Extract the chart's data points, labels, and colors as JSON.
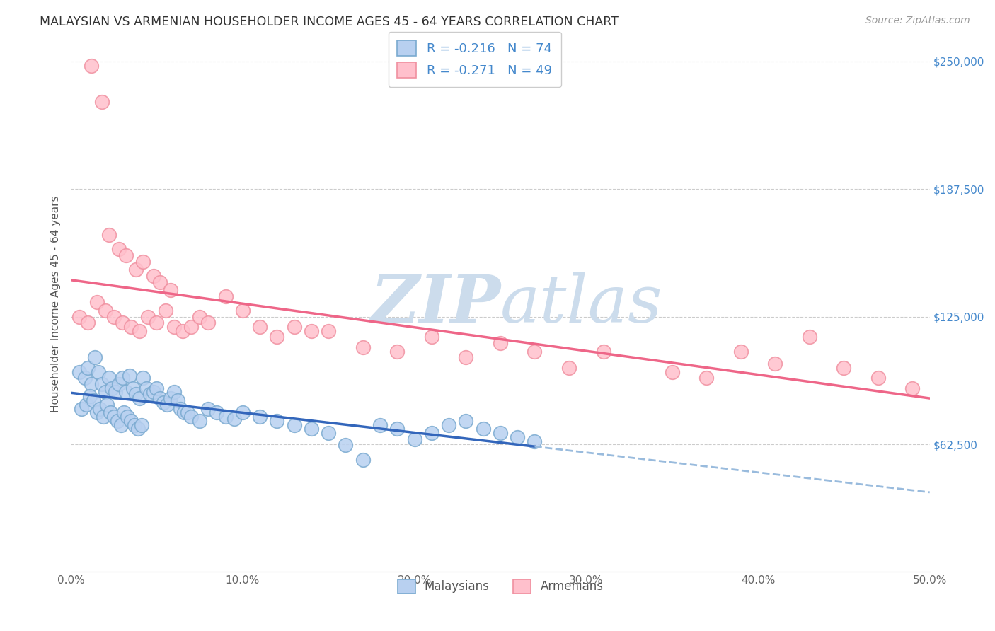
{
  "title": "MALAYSIAN VS ARMENIAN HOUSEHOLDER INCOME AGES 45 - 64 YEARS CORRELATION CHART",
  "source": "Source: ZipAtlas.com",
  "xlabel_ticks": [
    "0.0%",
    "10.0%",
    "20.0%",
    "30.0%",
    "40.0%",
    "50.0%"
  ],
  "xlabel_vals": [
    0,
    10,
    20,
    30,
    40,
    50
  ],
  "ylabel": "Householder Income Ages 45 - 64 years",
  "ytick_labels": [
    "$62,500",
    "$125,000",
    "$187,500",
    "$250,000"
  ],
  "ytick_vals": [
    62500,
    125000,
    187500,
    250000
  ],
  "ylim": [
    0,
    262500
  ],
  "xlim": [
    0,
    50
  ],
  "title_color": "#333333",
  "source_color": "#999999",
  "watermark_zip": "ZIP",
  "watermark_atlas": "atlas",
  "watermark_color": "#ccdcec",
  "blue_edge": "#7aaad0",
  "blue_face": "#b8d0f0",
  "pink_edge": "#f090a0",
  "pink_face": "#ffc0cc",
  "grid_color": "#cccccc",
  "blue_trend_color": "#3366bb",
  "blue_dash_color": "#99bbdd",
  "pink_trend_color": "#ee6688",
  "ytick_color": "#4488cc",
  "xtick_color": "#666666",
  "malaysian_x": [
    0.5,
    0.8,
    1.0,
    1.2,
    1.4,
    1.6,
    1.8,
    2.0,
    2.2,
    2.4,
    2.6,
    2.8,
    3.0,
    3.2,
    3.4,
    3.6,
    3.8,
    4.0,
    4.2,
    4.4,
    4.6,
    4.8,
    5.0,
    5.2,
    5.4,
    5.6,
    5.8,
    6.0,
    6.2,
    6.4,
    6.6,
    6.8,
    7.0,
    7.5,
    8.0,
    8.5,
    9.0,
    9.5,
    10.0,
    11.0,
    12.0,
    13.0,
    14.0,
    15.0,
    16.0,
    17.0,
    18.0,
    19.0,
    20.0,
    21.0,
    22.0,
    23.0,
    24.0,
    25.0,
    26.0,
    27.0,
    0.6,
    0.9,
    1.1,
    1.3,
    1.5,
    1.7,
    1.9,
    2.1,
    2.3,
    2.5,
    2.7,
    2.9,
    3.1,
    3.3,
    3.5,
    3.7,
    3.9,
    4.1
  ],
  "malaysian_y": [
    98000,
    95000,
    100000,
    92000,
    105000,
    98000,
    92000,
    88000,
    95000,
    90000,
    88000,
    92000,
    95000,
    88000,
    96000,
    90000,
    87000,
    85000,
    95000,
    90000,
    87000,
    88000,
    90000,
    85000,
    83000,
    82000,
    85000,
    88000,
    84000,
    80000,
    78000,
    78000,
    76000,
    74000,
    80000,
    78000,
    76000,
    75000,
    78000,
    76000,
    74000,
    72000,
    70000,
    68000,
    62000,
    55000,
    72000,
    70000,
    65000,
    68000,
    72000,
    74000,
    70000,
    68000,
    66000,
    64000,
    80000,
    82000,
    86000,
    84000,
    78000,
    80000,
    76000,
    82000,
    78000,
    76000,
    74000,
    72000,
    78000,
    76000,
    74000,
    72000,
    70000,
    72000
  ],
  "armenian_x": [
    0.5,
    1.0,
    1.5,
    2.0,
    2.5,
    3.0,
    3.5,
    4.0,
    4.5,
    5.0,
    5.5,
    6.0,
    6.5,
    7.0,
    7.5,
    8.0,
    9.0,
    10.0,
    11.0,
    12.0,
    13.0,
    14.0,
    15.0,
    17.0,
    19.0,
    21.0,
    23.0,
    25.0,
    27.0,
    29.0,
    31.0,
    35.0,
    37.0,
    39.0,
    41.0,
    43.0,
    45.0,
    47.0,
    49.0,
    1.2,
    1.8,
    2.2,
    2.8,
    3.2,
    3.8,
    4.2,
    4.8,
    5.2,
    5.8
  ],
  "armenian_y": [
    125000,
    122000,
    132000,
    128000,
    125000,
    122000,
    120000,
    118000,
    125000,
    122000,
    128000,
    120000,
    118000,
    120000,
    125000,
    122000,
    135000,
    128000,
    120000,
    115000,
    120000,
    118000,
    118000,
    110000,
    108000,
    115000,
    105000,
    112000,
    108000,
    100000,
    108000,
    98000,
    95000,
    108000,
    102000,
    115000,
    100000,
    95000,
    90000,
    248000,
    230000,
    165000,
    158000,
    155000,
    148000,
    152000,
    145000,
    142000,
    138000
  ]
}
